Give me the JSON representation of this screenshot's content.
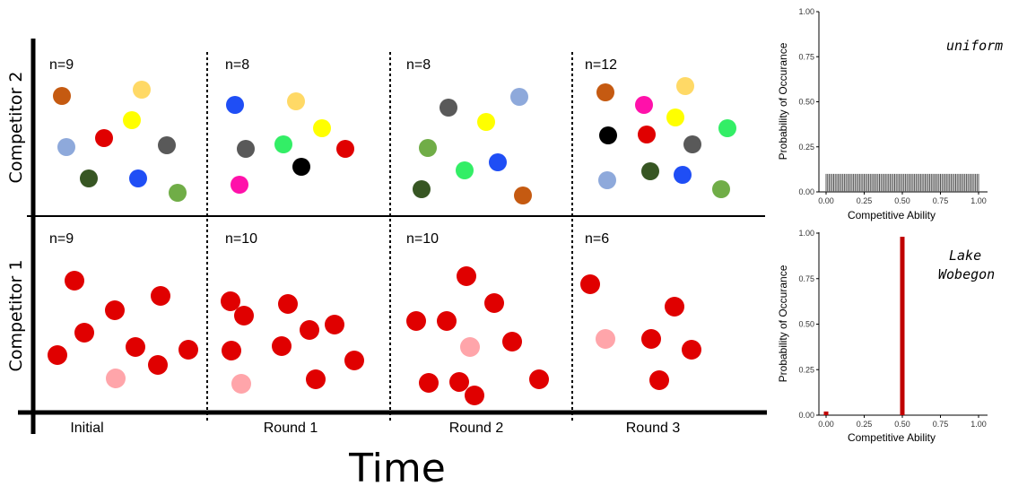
{
  "diagram": {
    "y_labels": {
      "top": "Competitor 2",
      "bottom": "Competitor 1"
    },
    "time_label": "Time",
    "columns": [
      "Initial",
      "Round 1",
      "Round 2",
      "Round 3"
    ],
    "panels": [
      {
        "row": "top",
        "col": 0,
        "count_label": "n=9",
        "dots": [
          {
            "color": "#C55A11"
          },
          {
            "color": "#FFD966"
          },
          {
            "color": "#FFFF00"
          },
          {
            "color": "#E00000"
          },
          {
            "color": "#8EA9DB"
          },
          {
            "color": "#595959"
          },
          {
            "color": "#375623"
          },
          {
            "color": "#1F4EF5"
          },
          {
            "color": "#70AD47"
          }
        ]
      },
      {
        "row": "top",
        "col": 1,
        "count_label": "n=8",
        "dots": [
          {
            "color": "#1F4EF5"
          },
          {
            "color": "#FFD966"
          },
          {
            "color": "#FFFF00"
          },
          {
            "color": "#595959"
          },
          {
            "color": "#33EE66"
          },
          {
            "color": "#E00000"
          },
          {
            "color": "#000000"
          },
          {
            "color": "#FF11AA"
          }
        ]
      },
      {
        "row": "top",
        "col": 2,
        "count_label": "n=8",
        "dots": [
          {
            "color": "#595959"
          },
          {
            "color": "#8EA9DB"
          },
          {
            "color": "#FFFF00"
          },
          {
            "color": "#70AD47"
          },
          {
            "color": "#1F4EF5"
          },
          {
            "color": "#33EE66"
          },
          {
            "color": "#375623"
          },
          {
            "color": "#C55A11"
          }
        ]
      },
      {
        "row": "top",
        "col": 3,
        "count_label": "n=12",
        "dots": [
          {
            "color": "#C55A11"
          },
          {
            "color": "#FF11AA"
          },
          {
            "color": "#FFD966"
          },
          {
            "color": "#FFFF00"
          },
          {
            "color": "#000000"
          },
          {
            "color": "#E00000"
          },
          {
            "color": "#595959"
          },
          {
            "color": "#33EE66"
          },
          {
            "color": "#8EA9DB"
          },
          {
            "color": "#375623"
          },
          {
            "color": "#1F4EF5"
          },
          {
            "color": "#70AD47"
          }
        ]
      },
      {
        "row": "bottom",
        "col": 0,
        "count_label": "n=9",
        "dots": [
          {
            "color": "#E00000"
          },
          {
            "color": "#E00000"
          },
          {
            "color": "#E00000"
          },
          {
            "color": "#E00000"
          },
          {
            "color": "#E00000"
          },
          {
            "color": "#E00000"
          },
          {
            "color": "#E00000"
          },
          {
            "color": "#E00000"
          },
          {
            "color": "#FFA5AA"
          }
        ]
      },
      {
        "row": "bottom",
        "col": 1,
        "count_label": "n=10",
        "dots": [
          {
            "color": "#E00000"
          },
          {
            "color": "#E00000"
          },
          {
            "color": "#E00000"
          },
          {
            "color": "#E00000"
          },
          {
            "color": "#E00000"
          },
          {
            "color": "#E00000"
          },
          {
            "color": "#E00000"
          },
          {
            "color": "#E00000"
          },
          {
            "color": "#E00000"
          },
          {
            "color": "#FFA5AA"
          }
        ]
      },
      {
        "row": "bottom",
        "col": 2,
        "count_label": "n=10",
        "dots": [
          {
            "color": "#E00000"
          },
          {
            "color": "#E00000"
          },
          {
            "color": "#E00000"
          },
          {
            "color": "#E00000"
          },
          {
            "color": "#FFA5AA"
          },
          {
            "color": "#E00000"
          },
          {
            "color": "#E00000"
          },
          {
            "color": "#E00000"
          },
          {
            "color": "#E00000"
          },
          {
            "color": "#E00000"
          }
        ]
      },
      {
        "row": "bottom",
        "col": 3,
        "count_label": "n=6",
        "dots": [
          {
            "color": "#E00000"
          },
          {
            "color": "#E00000"
          },
          {
            "color": "#FFA5AA"
          },
          {
            "color": "#E00000"
          },
          {
            "color": "#E00000"
          },
          {
            "color": "#E00000"
          }
        ]
      }
    ]
  },
  "chart_data": [
    {
      "type": "bar",
      "annotation": "uniform",
      "xlabel": "Competitive Ability",
      "ylabel": "Probability of Occurance",
      "xlim": [
        0,
        1
      ],
      "ylim": [
        0,
        1
      ],
      "x_ticks": [
        "0.00",
        "0.25",
        "0.50",
        "0.75",
        "1.00"
      ],
      "y_ticks": [
        "0.00",
        "0.25",
        "0.50",
        "0.75",
        "1.00"
      ],
      "bar_color": "#555555",
      "bar_count": 101,
      "x_start": 0.0,
      "x_step": 0.01,
      "value": 0.1
    },
    {
      "type": "bar",
      "annotation": "Lake Wobegon",
      "xlabel": "Competitive Ability",
      "ylabel": "Probability of Occurance",
      "xlim": [
        0,
        1
      ],
      "ylim": [
        0,
        1
      ],
      "x_ticks": [
        "0.00",
        "0.25",
        "0.50",
        "0.75",
        "1.00"
      ],
      "y_ticks": [
        "0.00",
        "0.25",
        "0.50",
        "0.75",
        "1.00"
      ],
      "bar_color": "#C00000",
      "x": [
        0.0,
        0.5
      ],
      "values": [
        0.02,
        0.98
      ]
    }
  ]
}
